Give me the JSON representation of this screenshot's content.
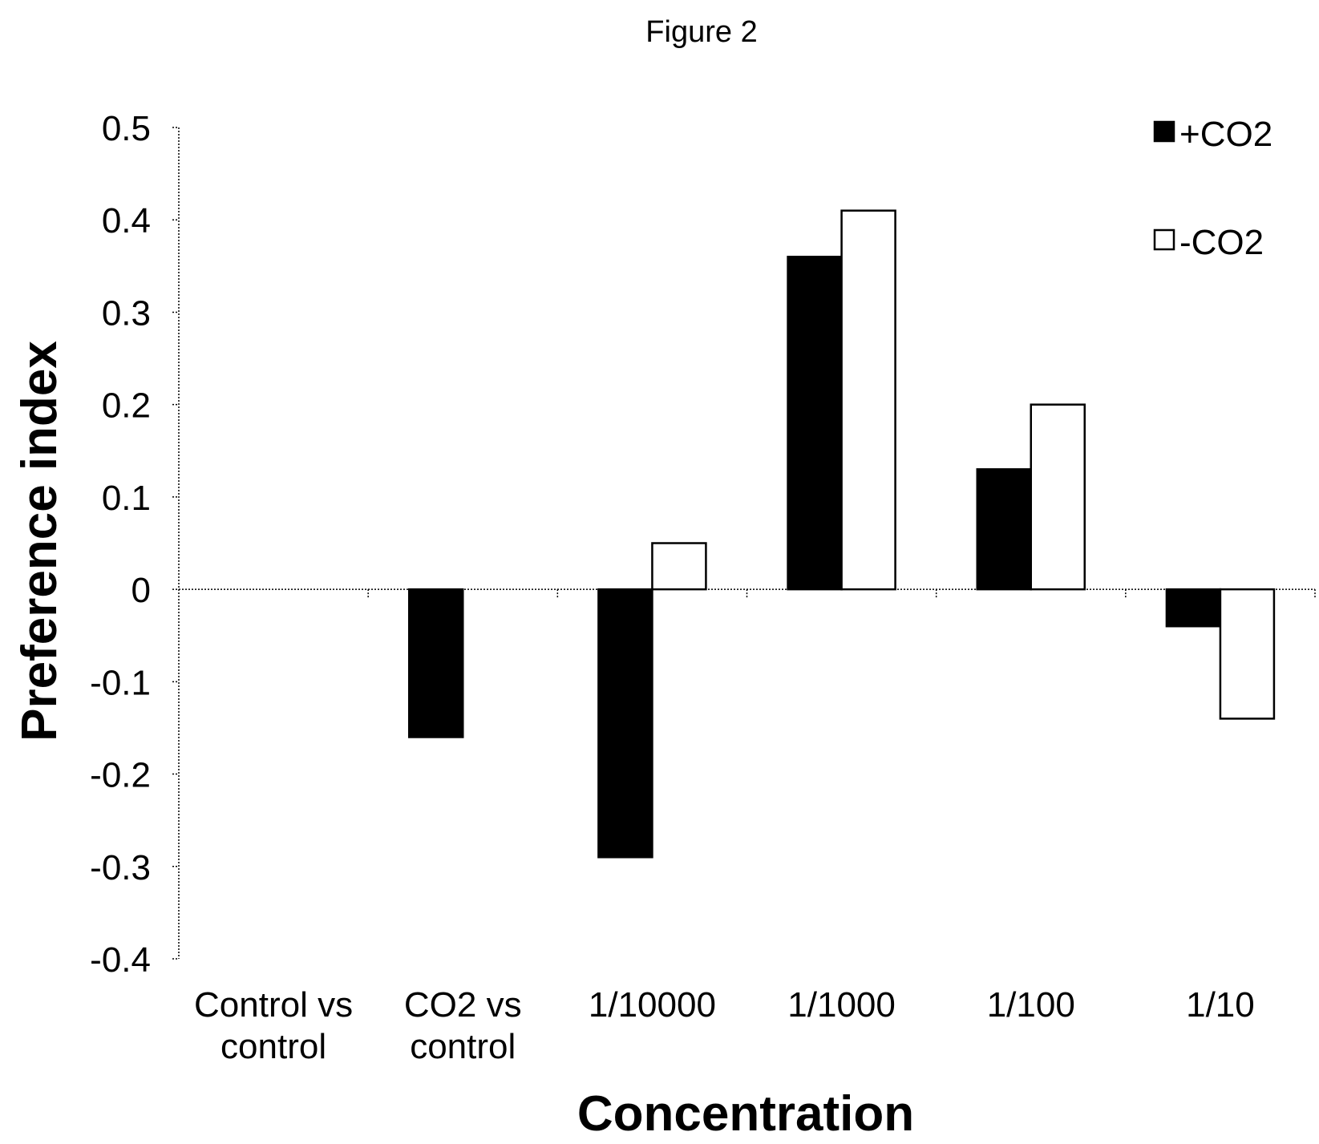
{
  "figure_label": "Figure 2",
  "chart_data": {
    "type": "bar",
    "categories": [
      [
        "Control vs",
        "control"
      ],
      [
        "CO2 vs",
        "control"
      ],
      [
        "1/10000"
      ],
      [
        "1/1000"
      ],
      [
        "1/100"
      ],
      [
        "1/10"
      ]
    ],
    "series": [
      {
        "name": "+CO2",
        "values": [
          0,
          -0.16,
          -0.29,
          0.36,
          0.13,
          -0.04
        ],
        "color": "#000000"
      },
      {
        "name": "-CO2",
        "values": [
          0,
          0,
          0.05,
          0.41,
          0.2,
          -0.14
        ],
        "color": "#ffffff"
      }
    ],
    "xlabel": "Concentration",
    "ylabel": "Preference index",
    "ylim": [
      -0.4,
      0.5
    ],
    "yticks": [
      "0.5",
      "0.4",
      "0.3",
      "0.2",
      "0.1",
      "0",
      "-0.1",
      "-0.2",
      "-0.3",
      "-0.4"
    ],
    "ytick_values": [
      0.5,
      0.4,
      0.3,
      0.2,
      0.1,
      0,
      -0.1,
      -0.2,
      -0.3,
      -0.4
    ],
    "grid": false,
    "legend_position": "top-right"
  }
}
